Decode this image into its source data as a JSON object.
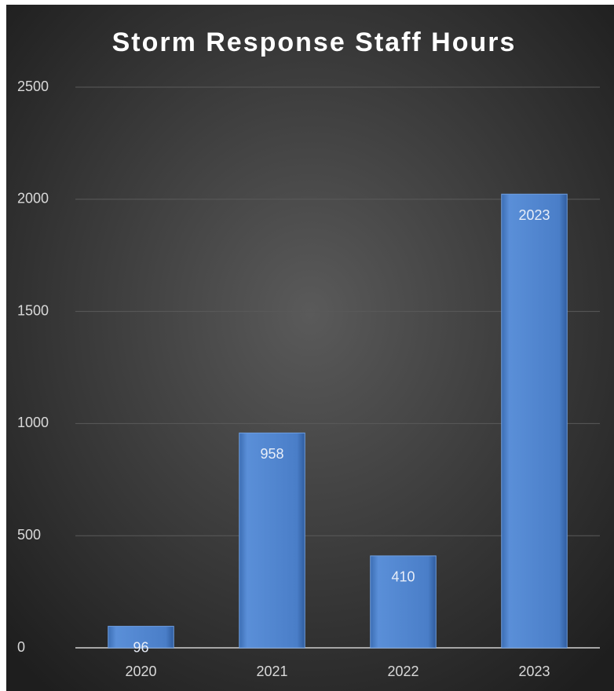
{
  "chart_data": {
    "type": "bar",
    "title": "Storm Response Staff Hours",
    "categories": [
      "2020",
      "2021",
      "2022",
      "2023"
    ],
    "values": [
      96,
      958,
      410,
      2023
    ],
    "color": "#4a7ec8",
    "ylim": [
      0,
      2500
    ],
    "yticks": [
      0,
      500,
      1000,
      1500,
      2000,
      2500
    ],
    "grid": true
  }
}
